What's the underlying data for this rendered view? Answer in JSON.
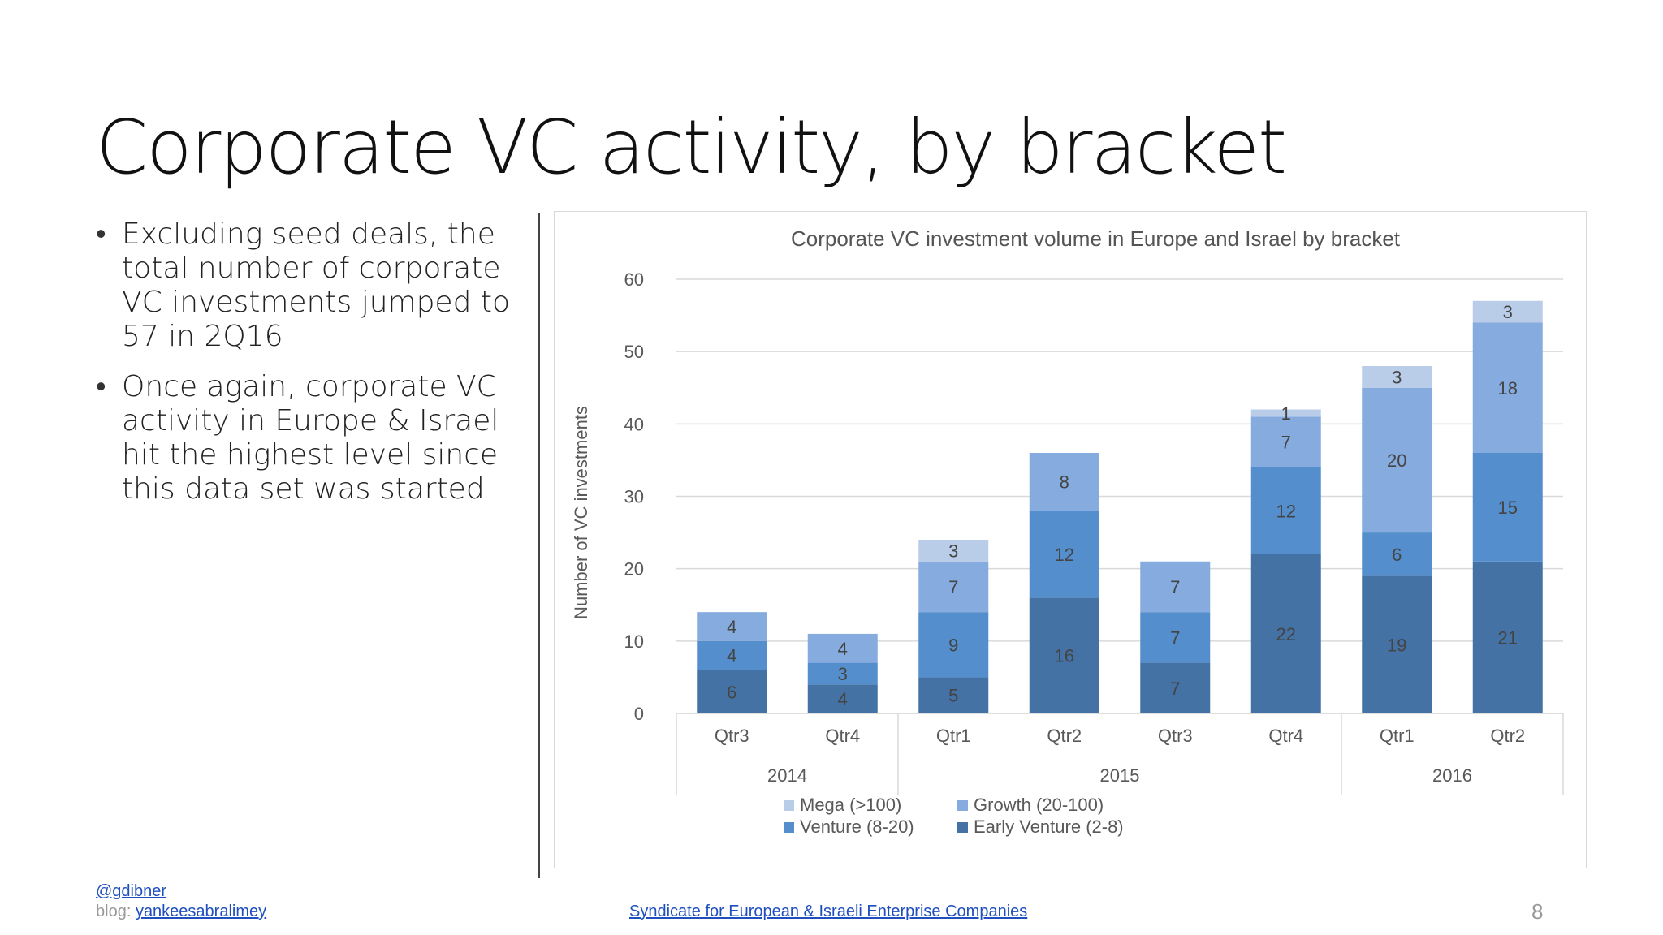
{
  "slide": {
    "title": "Corporate VC activity, by bracket",
    "bullets": [
      "Excluding seed deals, the total number of corporate VC investments jumped to 57 in 2Q16",
      "Once again, corporate VC activity in Europe & Israel hit the highest level since this data set was started"
    ],
    "footer": {
      "handle": "@gdibner",
      "blog_label": "blog: ",
      "blog_link": "yankeesabralimey",
      "center_link": "Syndicate for European & Israeli Enterprise Companies",
      "page_number": "8"
    }
  },
  "chart_data": {
    "type": "bar",
    "stacked": true,
    "title": "Corporate VC investment volume in Europe and Israel by bracket",
    "ylabel": "Number of VC investments",
    "xlabel": "",
    "ylim": [
      0,
      60
    ],
    "yticks": [
      0,
      10,
      20,
      30,
      40,
      50,
      60
    ],
    "grid": true,
    "categories": [
      "Qtr3",
      "Qtr4",
      "Qtr1",
      "Qtr2",
      "Qtr3",
      "Qtr4",
      "Qtr1",
      "Qtr2"
    ],
    "category_groups": [
      {
        "label": "2014",
        "count": 2
      },
      {
        "label": "2015",
        "count": 4
      },
      {
        "label": "2016",
        "count": 2
      }
    ],
    "series": [
      {
        "name": "Early Venture (2-8)",
        "color": "#4472a5",
        "values": [
          6,
          4,
          5,
          16,
          7,
          22,
          19,
          21
        ]
      },
      {
        "name": "Venture (8-20)",
        "color": "#548ecc",
        "values": [
          4,
          3,
          9,
          12,
          7,
          12,
          6,
          15
        ]
      },
      {
        "name": "Growth (20-100)",
        "color": "#86abdf",
        "values": [
          4,
          4,
          7,
          8,
          7,
          7,
          20,
          18
        ]
      },
      {
        "name": "Mega (>100)",
        "color": "#b9cde9",
        "values": [
          0,
          0,
          3,
          0,
          0,
          1,
          3,
          3
        ]
      }
    ],
    "legend": {
      "position": "bottom",
      "order": [
        "Mega (>100)",
        "Growth (20-100)",
        "Venture (8-20)",
        "Early Venture (2-8)"
      ]
    }
  }
}
